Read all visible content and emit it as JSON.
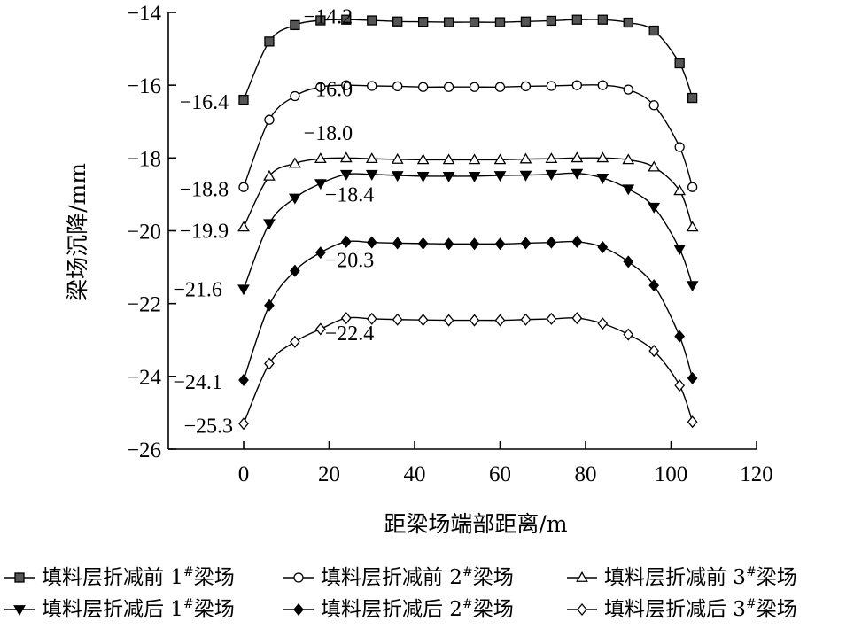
{
  "chart_data": {
    "type": "line",
    "xlabel": "距梁场端部距离/m",
    "ylabel": "梁场沉降/mm",
    "xlim": [
      -18,
      120
    ],
    "ylim": [
      -26,
      -14
    ],
    "xticks": [
      0,
      20,
      40,
      60,
      80,
      100,
      120
    ],
    "yticks": [
      -14,
      -16,
      -18,
      -20,
      -22,
      -24,
      -26
    ],
    "grid": false,
    "legend_position": "bottom",
    "x": [
      0,
      6,
      12,
      18,
      24,
      30,
      36,
      42,
      48,
      54,
      60,
      66,
      72,
      78,
      84,
      90,
      96,
      102,
      105
    ],
    "series": [
      {
        "name": "填料层折减前 1#梁场",
        "marker": "square-filled",
        "values": [
          -16.4,
          -14.8,
          -14.35,
          -14.22,
          -14.2,
          -14.22,
          -14.25,
          -14.26,
          -14.27,
          -14.27,
          -14.27,
          -14.25,
          -14.23,
          -14.2,
          -14.2,
          -14.28,
          -14.5,
          -15.4,
          -16.35
        ]
      },
      {
        "name": "填料层折减前 2#梁场",
        "marker": "circle-open",
        "values": [
          -18.8,
          -16.95,
          -16.3,
          -16.05,
          -16.0,
          -16.02,
          -16.03,
          -16.05,
          -16.05,
          -16.05,
          -16.05,
          -16.03,
          -16.02,
          -16.0,
          -16.0,
          -16.12,
          -16.55,
          -17.7,
          -18.8
        ]
      },
      {
        "name": "填料层折减前 3#梁场",
        "marker": "triangle-up-open",
        "values": [
          -19.9,
          -18.5,
          -18.15,
          -18.02,
          -18.0,
          -18.02,
          -18.04,
          -18.05,
          -18.05,
          -18.05,
          -18.05,
          -18.03,
          -18.02,
          -18.0,
          -18.0,
          -18.05,
          -18.25,
          -18.9,
          -19.9
        ]
      },
      {
        "name": "填料层折减后 1#梁场",
        "marker": "triangle-down-filled",
        "values": [
          -21.6,
          -19.8,
          -19.1,
          -18.7,
          -18.45,
          -18.45,
          -18.48,
          -18.5,
          -18.5,
          -18.5,
          -18.48,
          -18.47,
          -18.45,
          -18.42,
          -18.55,
          -18.85,
          -19.35,
          -20.5,
          -21.5
        ]
      },
      {
        "name": "填料层折减后 2#梁场",
        "marker": "diamond-filled",
        "values": [
          -24.1,
          -22.05,
          -21.1,
          -20.6,
          -20.3,
          -20.32,
          -20.34,
          -20.35,
          -20.36,
          -20.36,
          -20.36,
          -20.34,
          -20.32,
          -20.3,
          -20.45,
          -20.85,
          -21.5,
          -22.9,
          -24.05
        ]
      },
      {
        "name": "填料层折减后 3#梁场",
        "marker": "diamond-open",
        "values": [
          -25.3,
          -23.65,
          -23.05,
          -22.7,
          -22.4,
          -22.42,
          -22.44,
          -22.45,
          -22.46,
          -22.46,
          -22.46,
          -22.44,
          -22.42,
          -22.4,
          -22.55,
          -22.85,
          -23.3,
          -24.25,
          -25.25
        ]
      }
    ],
    "annotations": [
      {
        "text": "−14.2",
        "x": 14,
        "y": -14.3
      },
      {
        "text": "−16.4",
        "x": -15,
        "y": -16.65
      },
      {
        "text": "−16.0",
        "x": 14,
        "y": -16.3
      },
      {
        "text": "−18.0",
        "x": 14,
        "y": -17.5
      },
      {
        "text": "−18.8",
        "x": -15,
        "y": -19.05
      },
      {
        "text": "−19.9",
        "x": -15,
        "y": -20.2
      },
      {
        "text": "−18.4",
        "x": 19,
        "y": -19.2
      },
      {
        "text": "−21.6",
        "x": -16.5,
        "y": -21.8
      },
      {
        "text": "−20.3",
        "x": 19,
        "y": -21.0
      },
      {
        "text": "−22.4",
        "x": 19,
        "y": -23.0
      },
      {
        "text": "−24.1",
        "x": -16.5,
        "y": -24.35
      },
      {
        "text": "−25.3",
        "x": -14,
        "y": -25.55
      }
    ]
  }
}
